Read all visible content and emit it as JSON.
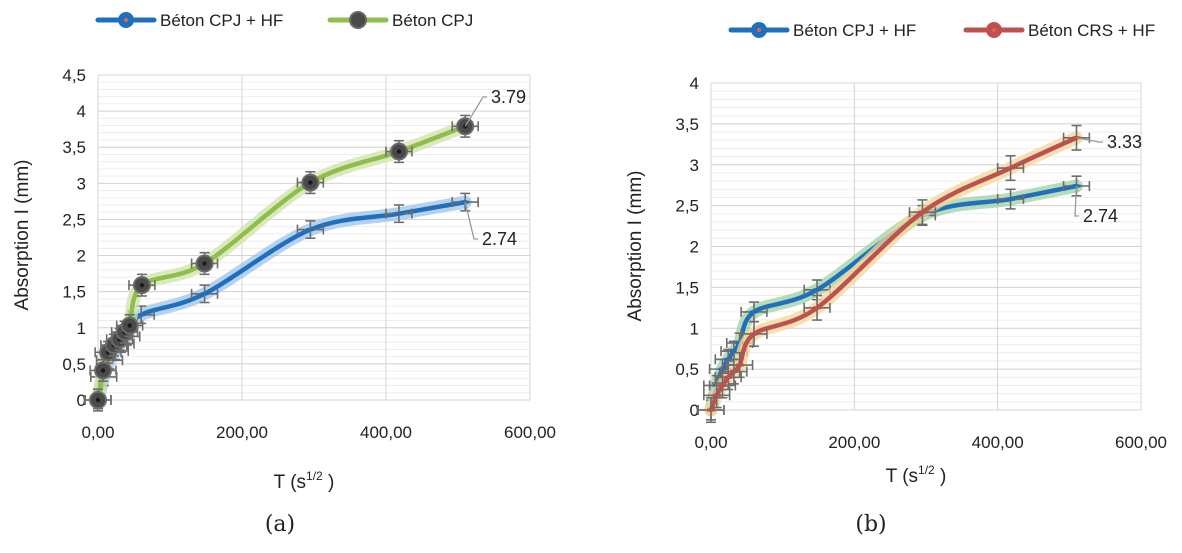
{
  "chart_data": [
    {
      "type": "line",
      "panel_label": "(a)",
      "xlabel_main": "T (s",
      "xlabel_sup": "1/2",
      "xlabel_tail": " )",
      "ylabel": "Absorption I (mm)",
      "xlim": [
        0,
        600
      ],
      "ylim": [
        0,
        4.5
      ],
      "xticks": [
        "0,00",
        "200,00",
        "400,00",
        "600,00"
      ],
      "yticks": [
        "0",
        "0,5",
        "1",
        "1,5",
        "2",
        "2,5",
        "3",
        "3,5",
        "4",
        "4,5"
      ],
      "grid": true,
      "legend_position": "top",
      "series": [
        {
          "name": "Béton CPJ + HF",
          "color": "#1f6fbf",
          "glow": "#9fc3ea",
          "marker": "dash",
          "x": [
            0,
            8,
            16,
            24,
            32,
            40,
            60,
            148,
            295,
            418,
            510
          ],
          "y": [
            0,
            0.32,
            0.55,
            0.68,
            0.78,
            0.88,
            1.18,
            1.47,
            2.36,
            2.58,
            2.74
          ],
          "error": 0.12,
          "end_label": "2.74"
        },
        {
          "name": "Béton CPJ",
          "color": "#8fbf4a",
          "glow": "#cfe3a8",
          "marker": "circle",
          "x": [
            0,
            7,
            14,
            22,
            30,
            37,
            44,
            61,
            148,
            295,
            418,
            510
          ],
          "y": [
            0,
            0.41,
            0.66,
            0.76,
            0.84,
            0.94,
            1.03,
            1.59,
            1.89,
            3.01,
            3.44,
            3.79
          ],
          "error": 0.15,
          "end_label": "3.79"
        }
      ]
    },
    {
      "type": "line",
      "panel_label": "(b)",
      "xlabel_main": "T (s",
      "xlabel_sup": "1/2",
      "xlabel_tail": " )",
      "ylabel": "Absorption I (mm)",
      "xlim": [
        0,
        600
      ],
      "ylim": [
        0,
        4
      ],
      "xticks": [
        "0,00",
        "200,00",
        "400,00",
        "600,00"
      ],
      "yticks": [
        "0",
        "0,5",
        "1",
        "1,5",
        "2",
        "2,5",
        "3",
        "3,5",
        "4"
      ],
      "grid": true,
      "legend_position": "top",
      "series": [
        {
          "name": "Béton CPJ + HF",
          "color": "#1f6fbf",
          "glow": "#9fd0a0",
          "marker": "dash",
          "x": [
            0,
            8,
            16,
            24,
            32,
            40,
            60,
            148,
            295,
            418,
            510
          ],
          "y": [
            0,
            0.3,
            0.5,
            0.62,
            0.72,
            0.82,
            1.2,
            1.47,
            2.38,
            2.58,
            2.74
          ],
          "error": 0.12,
          "end_label": "2.74"
        },
        {
          "name": "Béton CRS + HF",
          "color": "#c0504d",
          "glow": "#f2d89a",
          "marker": "dash",
          "x": [
            0,
            8,
            16,
            24,
            32,
            40,
            60,
            148,
            295,
            418,
            510
          ],
          "y": [
            0,
            0.18,
            0.3,
            0.4,
            0.47,
            0.55,
            0.93,
            1.25,
            2.42,
            2.96,
            3.33
          ],
          "error": 0.15,
          "end_label": "3.33"
        }
      ]
    }
  ]
}
